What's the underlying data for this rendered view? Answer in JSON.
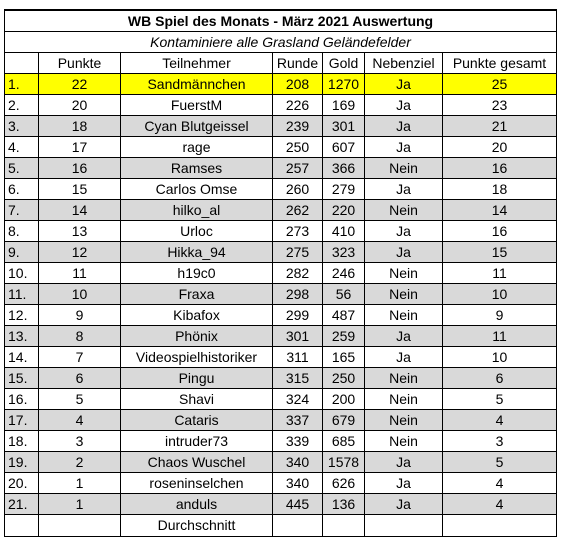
{
  "sheet": {
    "title": "WB Spiel des Monats - März 2021 Auswertung",
    "subtitle": "Kontaminiere alle Grasland Geländefelder",
    "headers": [
      "",
      "Punkte",
      "Teilnehmer",
      "Runde",
      "Gold",
      "Nebenziel",
      "Punkte gesamt"
    ],
    "rows": [
      {
        "rank": "1.",
        "punkte": "22",
        "name": "Sandmännchen",
        "runde": "208",
        "gold": "1270",
        "nebenziel": "Ja",
        "gesamt": "25"
      },
      {
        "rank": "2.",
        "punkte": "20",
        "name": "FuerstM",
        "runde": "226",
        "gold": "169",
        "nebenziel": "Ja",
        "gesamt": "23"
      },
      {
        "rank": "3.",
        "punkte": "18",
        "name": "Cyan Blutgeissel",
        "runde": "239",
        "gold": "301",
        "nebenziel": "Ja",
        "gesamt": "21"
      },
      {
        "rank": "4.",
        "punkte": "17",
        "name": "rage",
        "runde": "250",
        "gold": "607",
        "nebenziel": "Ja",
        "gesamt": "20"
      },
      {
        "rank": "5.",
        "punkte": "16",
        "name": "Ramses",
        "runde": "257",
        "gold": "366",
        "nebenziel": "Nein",
        "gesamt": "16"
      },
      {
        "rank": "6.",
        "punkte": "15",
        "name": "Carlos Omse",
        "runde": "260",
        "gold": "279",
        "nebenziel": "Ja",
        "gesamt": "18"
      },
      {
        "rank": "7.",
        "punkte": "14",
        "name": "hilko_al",
        "runde": "262",
        "gold": "220",
        "nebenziel": "Nein",
        "gesamt": "14"
      },
      {
        "rank": "8.",
        "punkte": "13",
        "name": "Urloc",
        "runde": "273",
        "gold": "410",
        "nebenziel": "Ja",
        "gesamt": "16"
      },
      {
        "rank": "9.",
        "punkte": "12",
        "name": "Hikka_94",
        "runde": "275",
        "gold": "323",
        "nebenziel": "Ja",
        "gesamt": "15"
      },
      {
        "rank": "10.",
        "punkte": "11",
        "name": "h19c0",
        "runde": "282",
        "gold": "246",
        "nebenziel": "Nein",
        "gesamt": "11"
      },
      {
        "rank": "11.",
        "punkte": "10",
        "name": "Fraxa",
        "runde": "298",
        "gold": "56",
        "nebenziel": "Nein",
        "gesamt": "10"
      },
      {
        "rank": "12.",
        "punkte": "9",
        "name": "Kibafox",
        "runde": "299",
        "gold": "487",
        "nebenziel": "Nein",
        "gesamt": "9"
      },
      {
        "rank": "13.",
        "punkte": "8",
        "name": "Phönix",
        "runde": "301",
        "gold": "259",
        "nebenziel": "Ja",
        "gesamt": "11"
      },
      {
        "rank": "14.",
        "punkte": "7",
        "name": "Videospielhistoriker",
        "runde": "311",
        "gold": "165",
        "nebenziel": "Ja",
        "gesamt": "10"
      },
      {
        "rank": "15.",
        "punkte": "6",
        "name": "Pingu",
        "runde": "315",
        "gold": "250",
        "nebenziel": "Nein",
        "gesamt": "6"
      },
      {
        "rank": "16.",
        "punkte": "5",
        "name": "Shavi",
        "runde": "324",
        "gold": "200",
        "nebenziel": "Nein",
        "gesamt": "5"
      },
      {
        "rank": "17.",
        "punkte": "4",
        "name": "Cataris",
        "runde": "337",
        "gold": "679",
        "nebenziel": "Nein",
        "gesamt": "4"
      },
      {
        "rank": "18.",
        "punkte": "3",
        "name": "intruder73",
        "runde": "339",
        "gold": "685",
        "nebenziel": "Nein",
        "gesamt": "3"
      },
      {
        "rank": "19.",
        "punkte": "2",
        "name": "Chaos Wuschel",
        "runde": "340",
        "gold": "1578",
        "nebenziel": "Ja",
        "gesamt": "5"
      },
      {
        "rank": "20.",
        "punkte": "1",
        "name": "roseninselchen",
        "runde": "340",
        "gold": "626",
        "nebenziel": "Ja",
        "gesamt": "4"
      },
      {
        "rank": "21.",
        "punkte": "1",
        "name": "anduls",
        "runde": "445",
        "gold": "136",
        "nebenziel": "Ja",
        "gesamt": "4"
      }
    ],
    "footer_label": "Durchschnitt",
    "colors": {
      "highlight": "#ffff00",
      "stripe": "#d9d9d9",
      "border": "#000000"
    }
  }
}
